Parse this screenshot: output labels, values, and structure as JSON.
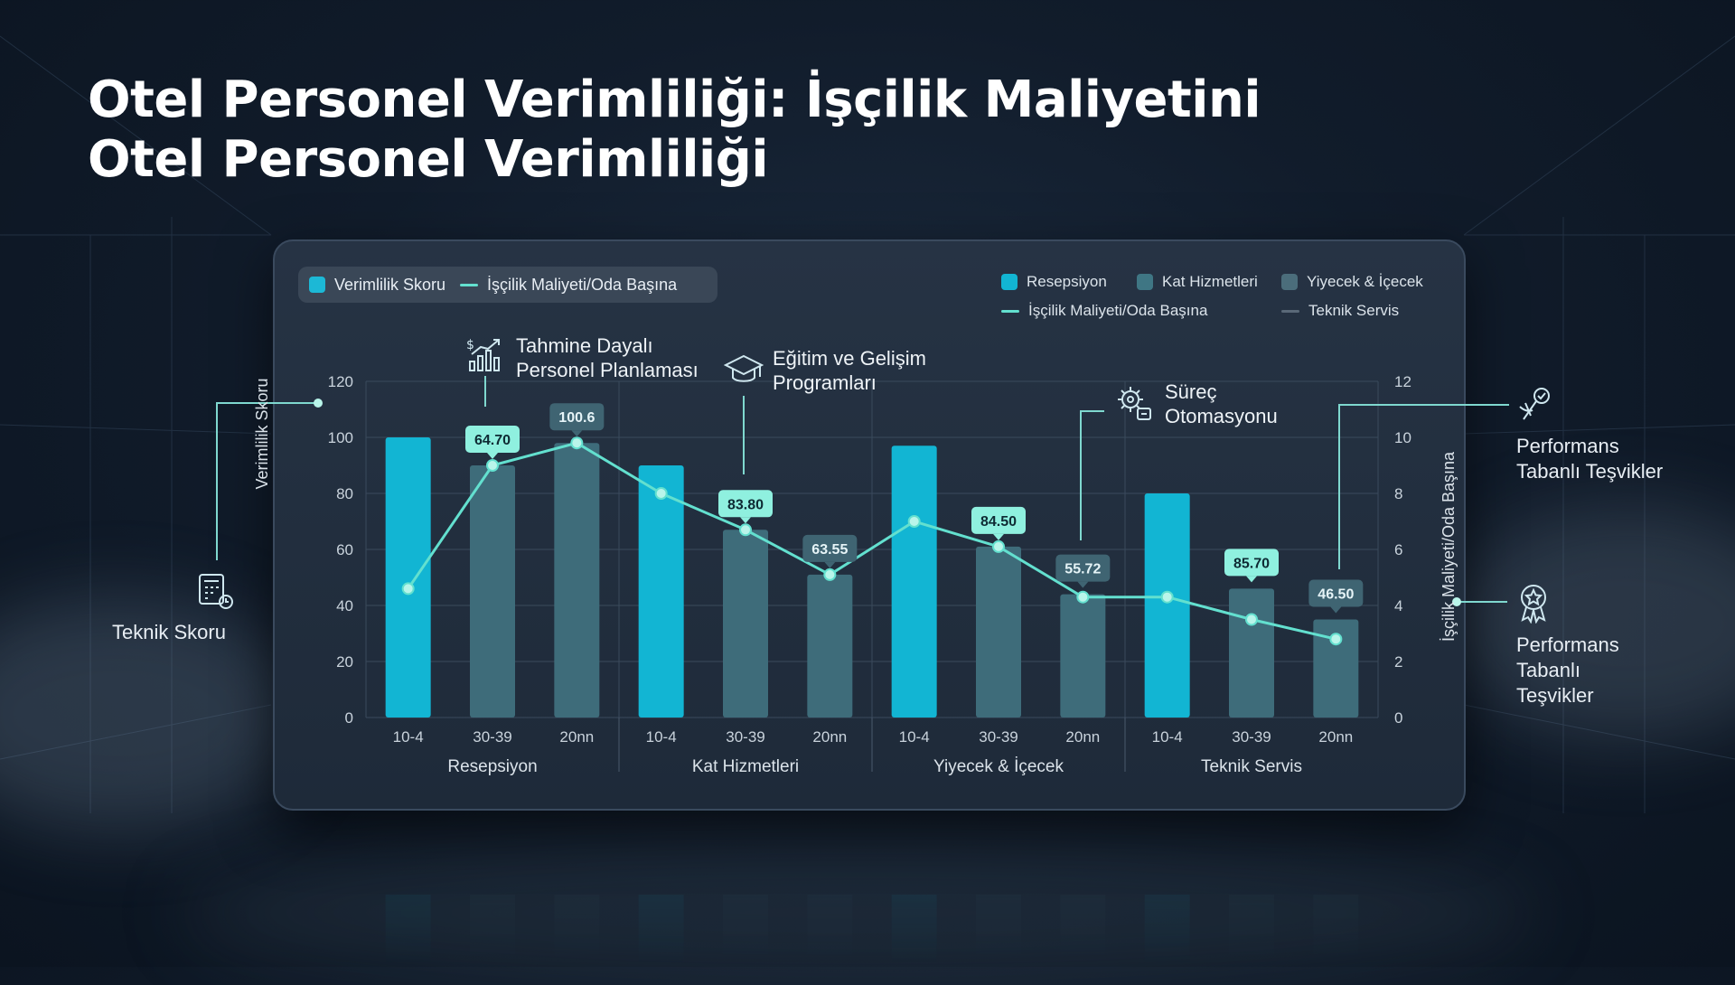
{
  "title_lines": [
    "Otel Personel Verimliliği: İşçilik Maliyetini",
    "Otel Personel Verimliliği"
  ],
  "legend_left": [
    {
      "label": "Verimlilik Skoru",
      "kind": "box",
      "color": "#1cb8d6"
    },
    {
      "label": "İşçilik Maliyeti/Oda Başına",
      "kind": "line",
      "color": "#63e0cf"
    }
  ],
  "legend_right": [
    {
      "label": "Resepsiyon",
      "kind": "box",
      "color": "#12b5d3"
    },
    {
      "label": "Kat Hizmetleri",
      "kind": "box",
      "color": "#3f7684"
    },
    {
      "label": "Yiyecek & İçecek",
      "kind": "box",
      "color": "#4b6d7b"
    },
    {
      "label": "İşçilik Maliyeti/Oda Başına",
      "kind": "line",
      "color": "#63e0cf"
    },
    {
      "label": "",
      "kind": "none",
      "color": ""
    },
    {
      "label": "Teknik Servis",
      "kind": "line",
      "color": "#5a6978"
    }
  ],
  "callouts": {
    "tahmine": {
      "line1": "Tahmine Dayalı",
      "line2": "Personel Planlaması",
      "icon": "growth-chart-icon"
    },
    "egitim": {
      "line1": "Eğitim ve Gelişim",
      "line2": "Programları",
      "icon": "graduation-cap-icon"
    },
    "surec": {
      "line1": "Süreç",
      "line2": "Otomasyonu",
      "icon": "gear-process-icon"
    }
  },
  "side_labels": {
    "teknik_skoru": "Teknik Skoru",
    "perf_top_line1": "Performans",
    "perf_top_line2": "Tabanlı Teşvikler",
    "perf_bottom_line1": "Performans",
    "perf_bottom_line2": "Tabanlı",
    "perf_bottom_line3": "Teşvikler"
  },
  "colors": {
    "primary_bar": "#12b5d3",
    "secondary_bar": "#3e6c7a",
    "line": "#63e0cf",
    "label_bright_bg": "#8ff0df",
    "label_dark_bg": "#3f6472"
  },
  "chart_data": {
    "type": "bar",
    "ylabel": "Verimlilik Skoru",
    "ylabel_right": "İşçilik Maliyeti/Oda Başına",
    "ylim": [
      0,
      120
    ],
    "yticks": [
      0,
      20,
      40,
      60,
      80,
      100,
      120
    ],
    "ylim_right": [
      0,
      12
    ],
    "yticks_right": [
      0,
      2,
      4,
      6,
      8,
      10,
      12
    ],
    "groups": [
      "Resepsiyon",
      "Kat Hizmetleri",
      "Yiyecek & İçecek",
      "Teknik Servis"
    ],
    "categories": [
      "10-4",
      "30-39",
      "20nn"
    ],
    "bar_values": [
      [
        100,
        90,
        98
      ],
      [
        90,
        67,
        51
      ],
      [
        97,
        61,
        44
      ],
      [
        80,
        46,
        35
      ]
    ],
    "bar_highlight": [
      "primary",
      "secondary",
      "secondary"
    ],
    "line_values": [
      [
        4.6,
        9.0,
        9.8
      ],
      [
        8.0,
        6.7,
        5.1
      ],
      [
        7.0,
        6.1,
        4.3
      ],
      [
        4.3,
        3.5,
        2.8
      ]
    ],
    "data_labels": [
      [
        null,
        "64.70",
        "100.6"
      ],
      [
        null,
        "83.80",
        "63.55"
      ],
      [
        null,
        "84.50",
        "55.72"
      ],
      [
        null,
        "85.70",
        "46.50"
      ]
    ],
    "label_style": [
      [
        null,
        "bright",
        "dark"
      ],
      [
        null,
        "bright",
        "dark"
      ],
      [
        null,
        "bright",
        "dark"
      ],
      [
        null,
        "bright",
        "dark"
      ]
    ],
    "grid": true
  }
}
